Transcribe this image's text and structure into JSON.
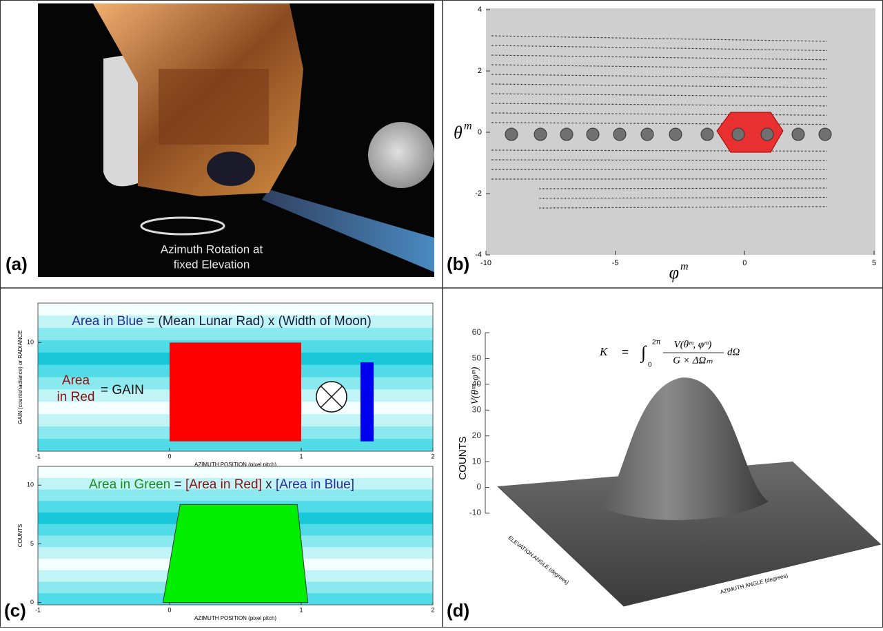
{
  "panels": {
    "a": {
      "label": "(a)",
      "caption_lines": [
        "Azimuth Rotation at",
        "fixed Elevation"
      ]
    },
    "b": {
      "label": "(b)",
      "x_label": "φ",
      "x_label_sup": "m",
      "y_label": "θ",
      "y_label_sup": "m",
      "xlim": [
        -10,
        5
      ],
      "ylim": [
        -4,
        4
      ],
      "xticks": [
        -10,
        -5,
        0,
        5
      ],
      "yticks": [
        -4,
        -2,
        0,
        2,
        4
      ]
    },
    "c": {
      "label": "(c)",
      "top": {
        "title_parts": [
          {
            "text": "Area in Blue",
            "color": "#2b2b9a"
          },
          {
            "text": " = (Mean Lunar Rad) x (Width of Moon)",
            "color": "#1a1a3a"
          }
        ],
        "red_label_lines": [
          "Area",
          "in Red"
        ],
        "red_label_color": "#8a1010",
        "gain_text": "= GAIN",
        "y_label": "GAIN (counts/radiance) or RADIANCE",
        "x_label": "AZIMUTH POSITION (pixel pitch)",
        "xlim": [
          -1,
          2
        ],
        "ylim": [
          -1,
          14
        ],
        "xticks": [
          -1,
          0,
          1,
          2
        ],
        "yticks": [
          10
        ],
        "red_box": {
          "x": [
            0,
            1
          ],
          "y": [
            0,
            10
          ],
          "color": "#ff0000"
        },
        "blue_box": {
          "x": [
            1.45,
            1.55
          ],
          "y": [
            0,
            8
          ],
          "color": "#0000ee"
        }
      },
      "bottom": {
        "title_parts": [
          {
            "text": "Area in Green",
            "color": "#1a8a1a"
          },
          {
            "text": " = ",
            "color": "#1a1a3a"
          },
          {
            "text": "[Area in Red]",
            "color": "#8a1010"
          },
          {
            "text": " x ",
            "color": "#1a1a3a"
          },
          {
            "text": "[Area in Blue]",
            "color": "#2b2b9a"
          }
        ],
        "y_label": "COUNTS",
        "x_label": "AZIMUTH POSITION (pixel pitch)",
        "xlim": [
          -1,
          2
        ],
        "ylim": [
          -0.2,
          11.6
        ],
        "xticks": [
          -1,
          0,
          1,
          2
        ],
        "yticks": [
          0,
          5,
          10
        ],
        "green_shape": {
          "x": [
            -0.05,
            0.08,
            0.97,
            1.05
          ],
          "y": [
            0,
            8.35,
            8.35,
            0
          ],
          "color": "#00ee00"
        }
      }
    },
    "d": {
      "label": "(d)",
      "y_label": "COUNTS",
      "z_label": "V(θᵐ, φᵐ)",
      "ylim": [
        -10,
        60
      ],
      "yticks": [
        -10,
        0,
        10,
        20,
        30,
        40,
        50,
        60
      ],
      "equation": {
        "lhs": "K",
        "eq": "=",
        "integral": "∫",
        "lower": "0",
        "upper": "2π",
        "numerator": "V(θᵐ, φᵐ)",
        "denominator": "G × ΔΩₘ",
        "tail": "dΩ"
      },
      "elev_label": "ELEVATION ANGLE (degrees)",
      "azim_label": "AZIMUTH ANGLE (degrees)"
    }
  }
}
